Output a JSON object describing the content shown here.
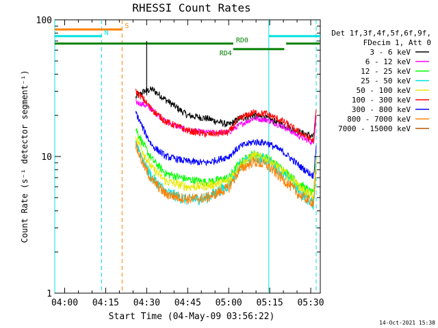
{
  "chart_data": {
    "type": "line",
    "title": "RHESSI Count Rates",
    "xlabel": "Start Time (04-May-09 03:56:22)",
    "ylabel": "Count Rate (s⁻¹ detector segment⁻¹)",
    "y_scale": "log",
    "ylim": [
      1,
      100
    ],
    "xlim": [
      "03:56:22",
      "05:33:30"
    ],
    "x_ticks": [
      "04:00",
      "04:15",
      "04:30",
      "04:45",
      "05:00",
      "05:15",
      "05:30"
    ],
    "y_ticks": [
      "1",
      "10",
      "100"
    ],
    "grid": false,
    "legend_position": "right",
    "legend_header": [
      "Det 1f,3f,4f,5f,6f,9f,",
      "FDecim 1, Att 0"
    ],
    "series": [
      {
        "name": "3 - 6 keV",
        "color": "#000000",
        "x": [
          "04:26",
          "04:29",
          "04:32",
          "04:37",
          "04:45",
          "04:52",
          "05:00",
          "05:04",
          "05:09",
          "05:14",
          "05:20",
          "05:26",
          "05:31",
          "05:32"
        ],
        "y": [
          27,
          30,
          31,
          26,
          20,
          19,
          17,
          19,
          20,
          19,
          17,
          15,
          14,
          20
        ]
      },
      {
        "name": "6 - 12 keV",
        "color": "#ff00ff",
        "x": [
          "04:26",
          "04:29",
          "04:32",
          "04:37",
          "04:45",
          "04:52",
          "05:00",
          "05:04",
          "05:09",
          "05:14",
          "05:20",
          "05:26",
          "05:31",
          "05:32"
        ],
        "y": [
          25,
          24,
          22,
          18,
          15.5,
          15,
          15,
          17,
          19,
          18.5,
          16.5,
          14,
          12.5,
          20
        ]
      },
      {
        "name": "12 - 25 keV",
        "color": "#00ff00",
        "x": [
          "04:26",
          "04:29",
          "04:32",
          "04:37",
          "04:45",
          "04:52",
          "05:00",
          "05:04",
          "05:09",
          "05:14",
          "05:20",
          "05:26",
          "05:31",
          "05:32"
        ],
        "y": [
          16,
          12,
          9.5,
          7.5,
          6.8,
          6.5,
          7,
          9,
          10.5,
          9.8,
          8,
          6.3,
          5.3,
          10
        ]
      },
      {
        "name": "25 - 50 keV",
        "color": "#00e0e0",
        "x": [
          "04:26",
          "04:29",
          "04:32",
          "04:37",
          "04:45",
          "04:52",
          "05:00",
          "05:04",
          "05:09",
          "05:14",
          "05:20",
          "05:26",
          "05:31",
          "05:32"
        ],
        "y": [
          13,
          9,
          7,
          5.5,
          4.8,
          5,
          6.2,
          8.5,
          10,
          9.5,
          7.5,
          5.5,
          4.5,
          9
        ]
      },
      {
        "name": "50 - 100 keV",
        "color": "#e8e800",
        "x": [
          "04:26",
          "04:29",
          "04:32",
          "04:37",
          "04:45",
          "04:52",
          "05:00",
          "05:04",
          "05:09",
          "05:14",
          "05:20",
          "05:26",
          "05:31",
          "05:32"
        ],
        "y": [
          14,
          10.5,
          8.2,
          6.6,
          6,
          6.1,
          6.6,
          8.6,
          10.2,
          9.6,
          7.8,
          6,
          5,
          9.5
        ]
      },
      {
        "name": "100 - 300 keV",
        "color": "#ff0000",
        "x": [
          "04:26",
          "04:29",
          "04:32",
          "04:37",
          "04:45",
          "04:52",
          "05:00",
          "05:04",
          "05:09",
          "05:14",
          "05:20",
          "05:26",
          "05:31",
          "05:32"
        ],
        "y": [
          30,
          26,
          22,
          18,
          15.5,
          14.5,
          15,
          19,
          21,
          20.5,
          18,
          15,
          13,
          22
        ]
      },
      {
        "name": "300 - 800 keV",
        "color": "#0000ff",
        "x": [
          "04:26",
          "04:29",
          "04:32",
          "04:37",
          "04:45",
          "04:52",
          "05:00",
          "05:04",
          "05:09",
          "05:14",
          "05:20",
          "05:26",
          "05:31",
          "05:32"
        ],
        "y": [
          21,
          15.5,
          12,
          10,
          9.2,
          9,
          10,
          11.8,
          12.8,
          12.6,
          10.8,
          8.5,
          7.2,
          12
        ]
      },
      {
        "name": "800 - 7000 keV",
        "color": "#ff8000",
        "x": [
          "04:26",
          "04:29",
          "04:32",
          "04:37",
          "04:45",
          "04:52",
          "05:00",
          "05:04",
          "05:09",
          "05:14",
          "05:20",
          "05:26",
          "05:31",
          "05:32"
        ],
        "y": [
          12,
          8.5,
          6.7,
          5.3,
          4.9,
          5,
          5.9,
          8,
          9.2,
          8.6,
          6.8,
          5.2,
          4.6,
          8
        ]
      },
      {
        "name": "7000 - 15000 keV",
        "color": "#b05800",
        "x": [],
        "y": []
      }
    ],
    "annotations": {
      "vertical_lines": [
        {
          "time": "03:56:22",
          "style": "solid",
          "color": "#00e0e0"
        },
        {
          "time": "04:13:30",
          "style": "dashed",
          "color": "#00e0e0"
        },
        {
          "time": "04:21:00",
          "style": "dashed",
          "color": "#ff8000"
        },
        {
          "time": "05:14:40",
          "style": "solid",
          "color": "#00e0e0"
        },
        {
          "time": "05:32:00",
          "style": "dashed",
          "color": "#00e0e0"
        }
      ],
      "bars": [
        {
          "label": "S",
          "start": "03:56:22",
          "end": "04:21:00",
          "level": 85,
          "color": "#ff8000",
          "label_pos": "end"
        },
        {
          "label": "N",
          "start": "03:56:22",
          "end": "04:13:30",
          "level": 76,
          "color": "#00e0e0",
          "label_pos": "end"
        },
        {
          "label": "",
          "start": "05:14:40",
          "end": "05:33:30",
          "level": 76,
          "color": "#00e0e0",
          "label_pos": "end"
        },
        {
          "label": "RD0",
          "start": "03:56:22",
          "end": "05:01:40",
          "level": 67,
          "color": "#008000",
          "label_pos": "end"
        },
        {
          "label": "",
          "start": "05:21:00",
          "end": "05:33:30",
          "level": 67,
          "color": "#008000",
          "label_pos": "end"
        },
        {
          "label": "RD4",
          "start": "05:01:40",
          "end": "05:20:20",
          "level": 61,
          "color": "#008000",
          "label_pos": "start"
        }
      ]
    }
  },
  "footer": {
    "timestamp": "14-Oct-2021 15:38"
  }
}
